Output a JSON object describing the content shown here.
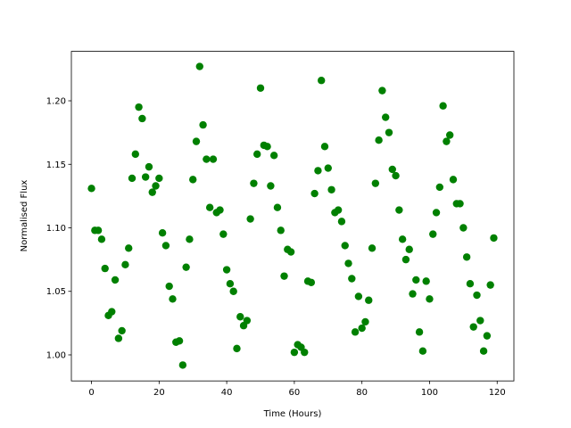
{
  "chart_data": {
    "type": "scatter",
    "x_label": "Time (Hours)",
    "y_label": "Normalised Flux",
    "series": [
      {
        "color": "#008000",
        "x": [
          0,
          1,
          2,
          3,
          4,
          5,
          6,
          7,
          8,
          9,
          10,
          11,
          12,
          13,
          14,
          15,
          16,
          17,
          18,
          19,
          20,
          21,
          22,
          23,
          24,
          25,
          26,
          27,
          28,
          29,
          30,
          31,
          32,
          33,
          34,
          35,
          36,
          37,
          38,
          39,
          40,
          41,
          42,
          43,
          44,
          45,
          46,
          47,
          48,
          49,
          50,
          51,
          52,
          53,
          54,
          55,
          56,
          57,
          58,
          59,
          60,
          61,
          62,
          63,
          64,
          65,
          66,
          67,
          68,
          69,
          70,
          71,
          72,
          73,
          74,
          75,
          76,
          77,
          78,
          79,
          80,
          81,
          82,
          83,
          84,
          85,
          86,
          87,
          88,
          89,
          90,
          91,
          92,
          93,
          94,
          95,
          96,
          97,
          98,
          99,
          100,
          101,
          102,
          103,
          104,
          105,
          106,
          107,
          108,
          109,
          110,
          111,
          112,
          113,
          114,
          115,
          116,
          117,
          118,
          119
        ],
        "values": [
          1.131,
          1.098,
          1.098,
          1.091,
          1.068,
          1.031,
          1.034,
          1.059,
          1.013,
          1.019,
          1.071,
          1.084,
          1.139,
          1.158,
          1.195,
          1.186,
          1.14,
          1.148,
          1.128,
          1.133,
          1.139,
          1.096,
          1.086,
          1.054,
          1.044,
          1.01,
          1.011,
          0.992,
          1.069,
          1.091,
          1.138,
          1.168,
          1.227,
          1.181,
          1.154,
          1.116,
          1.154,
          1.112,
          1.114,
          1.095,
          1.067,
          1.056,
          1.05,
          1.005,
          1.03,
          1.023,
          1.027,
          1.107,
          1.135,
          1.158,
          1.21,
          1.165,
          1.164,
          1.133,
          1.157,
          1.116,
          1.098,
          1.062,
          1.083,
          1.081,
          1.002,
          1.008,
          1.006,
          1.002,
          1.058,
          1.057,
          1.127,
          1.145,
          1.216,
          1.164,
          1.147,
          1.13,
          1.112,
          1.114,
          1.105,
          1.086,
          1.072,
          1.06,
          1.018,
          1.046,
          1.021,
          1.026,
          1.043,
          1.084,
          1.135,
          1.169,
          1.208,
          1.187,
          1.175,
          1.146,
          1.141,
          1.114,
          1.091,
          1.075,
          1.083,
          1.048,
          1.059,
          1.018,
          1.003,
          1.058,
          1.044,
          1.095,
          1.112,
          1.132,
          1.196,
          1.168,
          1.173,
          1.138,
          1.119,
          1.119,
          1.1,
          1.077,
          1.056,
          1.022,
          1.047,
          1.027,
          1.003,
          1.015,
          1.055,
          1.092
        ]
      }
    ],
    "xlim": [
      -5.95,
      124.95
    ],
    "xticks": [
      0,
      20,
      40,
      60,
      80,
      100,
      120
    ],
    "ylim": [
      0.9795,
      1.2389
    ],
    "yticks": [
      {
        "value": 1.0,
        "label": "1.00"
      },
      1.05,
      {
        "value": 1.1,
        "label": "1.10"
      },
      1.15,
      {
        "value": 1.2,
        "label": "1.20"
      }
    ],
    "grid": false
  }
}
